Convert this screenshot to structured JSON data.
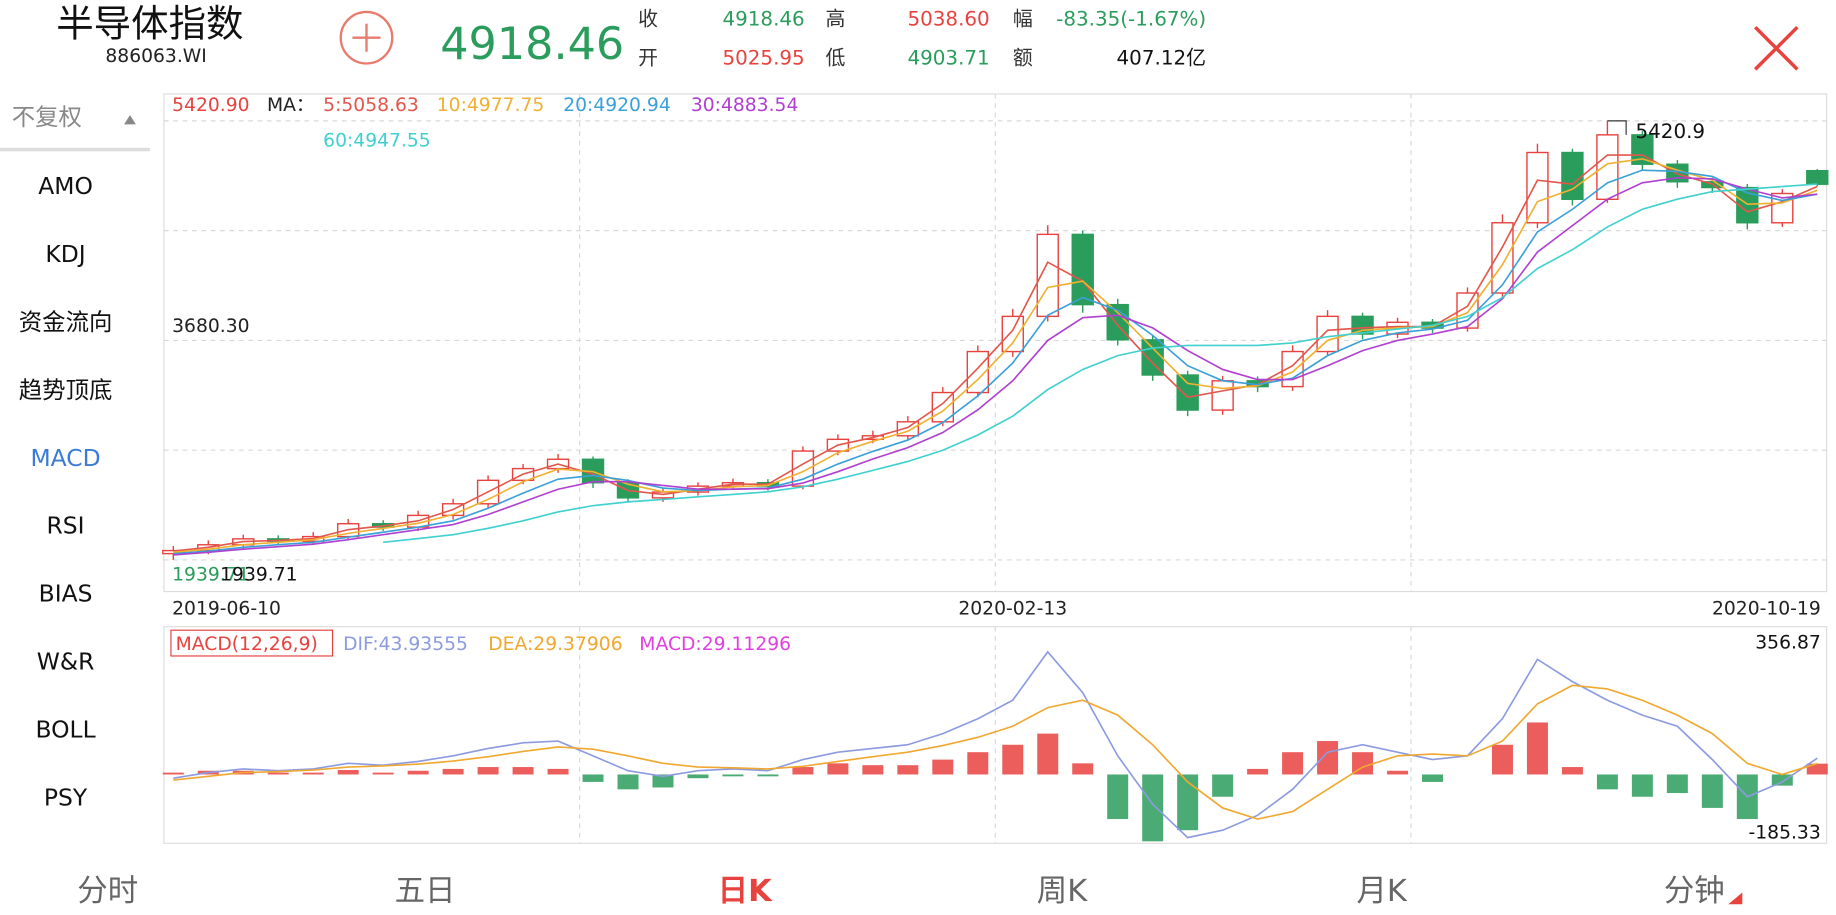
{
  "header": {
    "title": "半导体指数",
    "code": "886063.WI",
    "price": "4918.46",
    "quote": [
      [
        "收",
        "4918.46",
        "高",
        "5038.60",
        "幅",
        "-83.35(-1.67%)"
      ],
      [
        "开",
        "5025.95",
        "低",
        "4903.71",
        "额",
        "407.12亿"
      ]
    ]
  },
  "menu": {
    "adjust": "不复权",
    "items": [
      "AMO",
      "KDJ",
      "资金流向",
      "趋势顶底",
      "MACD",
      "RSI",
      "BIAS",
      "W&R",
      "BOLL",
      "PSY"
    ]
  },
  "tabs": [
    "分时",
    "五日",
    "日K",
    "周K",
    "月K",
    "分钟"
  ],
  "chart_data": [
    {
      "type": "candlestick",
      "categories": [
        "2019-06-10",
        null,
        null,
        null,
        null,
        null,
        null,
        null,
        null,
        null,
        null,
        null,
        null,
        null,
        null,
        null,
        null,
        null,
        null,
        null,
        null,
        null,
        null,
        null,
        "2020-02-13",
        null,
        null,
        null,
        null,
        null,
        null,
        null,
        null,
        null,
        null,
        null,
        null,
        null,
        null,
        null,
        null,
        null,
        null,
        null,
        null,
        null,
        null,
        "2020-10-19"
      ],
      "open": [
        1990,
        2014,
        2060,
        2107,
        2088,
        2125,
        2227,
        2200,
        2293,
        2385,
        2571,
        2664,
        2738,
        2552,
        2432,
        2478,
        2525,
        2552,
        2525,
        2803,
        2896,
        2924,
        3035,
        3267,
        3592,
        3871,
        4521,
        3964,
        3685,
        3406,
        3128,
        3360,
        3314,
        3592,
        3871,
        3731,
        3824,
        3778,
        4056,
        4613,
        5170,
        4799,
        5310,
        5077,
        4938,
        4892,
        4613,
        5025.95
      ],
      "high": [
        2050,
        2095,
        2140,
        2135,
        2160,
        2265,
        2255,
        2330,
        2425,
        2610,
        2700,
        2780,
        2760,
        2580,
        2510,
        2555,
        2585,
        2580,
        2840,
        2935,
        2965,
        3080,
        3310,
        3640,
        3930,
        4594,
        4550,
        4010,
        3720,
        3440,
        3400,
        3395,
        3640,
        3920,
        3900,
        3860,
        3850,
        4100,
        4680,
        5240,
        5200,
        5420.9,
        5340,
        5110,
        4970,
        4920,
        4880,
        5038.6
      ],
      "low": [
        1939.71,
        1985,
        2030,
        2055,
        2060,
        2095,
        2170,
        2170,
        2260,
        2350,
        2540,
        2630,
        2510,
        2395,
        2400,
        2450,
        2495,
        2490,
        2500,
        2770,
        2865,
        2890,
        3000,
        3230,
        3550,
        3830,
        3900,
        3640,
        3360,
        3080,
        3090,
        3270,
        3280,
        3560,
        3690,
        3700,
        3740,
        3750,
        4010,
        4570,
        4750,
        4770,
        5030,
        4890,
        4850,
        4560,
        4580,
        4903.71
      ],
      "close": [
        2014,
        2060,
        2107,
        2088,
        2125,
        2227,
        2200,
        2293,
        2385,
        2571,
        2664,
        2738,
        2552,
        2432,
        2478,
        2525,
        2552,
        2525,
        2803,
        2896,
        2924,
        3035,
        3267,
        3592,
        3871,
        4521,
        3964,
        3685,
        3406,
        3128,
        3360,
        3314,
        3592,
        3871,
        3731,
        3824,
        3778,
        4056,
        4613,
        5170,
        4799,
        5310,
        5077,
        4938,
        4892,
        4613,
        4845,
        4918.46
      ],
      "up_color": "#e8423f",
      "down_color": "#2a9d5c",
      "ma_label": "MA：",
      "series": [
        {
          "name": "5:5058.63",
          "color": "#e2574c",
          "values": [
            2010,
            2040,
            2085,
            2095,
            2110,
            2180,
            2210,
            2250,
            2340,
            2480,
            2620,
            2700,
            2620,
            2490,
            2460,
            2500,
            2540,
            2540,
            2700,
            2850,
            2910,
            2990,
            3180,
            3460,
            3760,
            4300,
            4150,
            3800,
            3500,
            3230,
            3280,
            3330,
            3480,
            3760,
            3780,
            3790,
            3790,
            3950,
            4420,
            4950,
            4920,
            5150,
            5150,
            5000,
            4920,
            4700,
            4780,
            4900
          ]
        },
        {
          "name": "10:4977.75",
          "color": "#f0b030",
          "values": [
            2000,
            2025,
            2060,
            2080,
            2100,
            2150,
            2190,
            2230,
            2300,
            2420,
            2560,
            2660,
            2640,
            2540,
            2480,
            2490,
            2520,
            2530,
            2640,
            2790,
            2880,
            2960,
            3120,
            3370,
            3660,
            4100,
            4150,
            3900,
            3620,
            3340,
            3300,
            3320,
            3430,
            3680,
            3760,
            3780,
            3790,
            3900,
            4280,
            4780,
            4880,
            5080,
            5120,
            5030,
            4950,
            4760,
            4770,
            4870
          ]
        },
        {
          "name": "20:4920.94",
          "color": "#3aa0d8",
          "values": [
            1990,
            2010,
            2040,
            2060,
            2080,
            2120,
            2160,
            2200,
            2250,
            2350,
            2470,
            2580,
            2610,
            2570,
            2510,
            2490,
            2500,
            2510,
            2580,
            2700,
            2800,
            2890,
            3030,
            3240,
            3500,
            3880,
            4020,
            3920,
            3720,
            3480,
            3360,
            3330,
            3380,
            3560,
            3680,
            3740,
            3770,
            3840,
            4120,
            4540,
            4720,
            4930,
            5030,
            5020,
            4980,
            4850,
            4790,
            4840
          ]
        },
        {
          "name": "30:4883.54",
          "color": "#b040d0",
          "values": [
            1980,
            2000,
            2025,
            2045,
            2065,
            2100,
            2140,
            2180,
            2220,
            2300,
            2400,
            2500,
            2560,
            2560,
            2530,
            2500,
            2500,
            2505,
            2550,
            2640,
            2740,
            2830,
            2950,
            3130,
            3360,
            3680,
            3860,
            3880,
            3780,
            3600,
            3450,
            3370,
            3370,
            3480,
            3600,
            3680,
            3730,
            3790,
            4010,
            4380,
            4590,
            4800,
            4930,
            4970,
            4960,
            4880,
            4810,
            4840
          ]
        },
        {
          "name": "60:4947.55",
          "color": "#40d0d0",
          "values": [
            null,
            null,
            null,
            null,
            null,
            null,
            2080,
            2110,
            2140,
            2190,
            2250,
            2320,
            2370,
            2400,
            2420,
            2440,
            2460,
            2480,
            2520,
            2580,
            2650,
            2720,
            2810,
            2930,
            3080,
            3290,
            3450,
            3560,
            3620,
            3640,
            3640,
            3640,
            3660,
            3710,
            3740,
            3770,
            3800,
            3870,
            4020,
            4250,
            4400,
            4580,
            4720,
            4800,
            4860,
            4880,
            4900,
            4920
          ]
        }
      ],
      "ylim": [
        1939.71,
        5420.9
      ],
      "yticks": [
        1939.71,
        {
          "value": 2810.01,
          "label": null
        },
        {
          "value": 3680.3,
          "label": "3680.30"
        },
        {
          "value": 4550.6,
          "label": null
        },
        {
          "value": 5420.9,
          "label": "5420.90"
        }
      ],
      "grid": true,
      "annotations": {
        "max_label": "5420.9",
        "min_label": "1939.71"
      }
    },
    {
      "type": "macd",
      "title": "MACD(12,26,9)",
      "series": [
        {
          "name": "DIF:43.93555",
          "color": "#8c9be0",
          "values": [
            -10,
            5,
            15,
            10,
            15,
            30,
            25,
            35,
            50,
            70,
            85,
            90,
            50,
            10,
            -5,
            10,
            15,
            10,
            40,
            60,
            70,
            80,
            110,
            150,
            200,
            330,
            220,
            50,
            -80,
            -170,
            -150,
            -110,
            -40,
            60,
            80,
            60,
            40,
            50,
            150,
            310,
            250,
            200,
            160,
            130,
            40,
            -60,
            -20,
            43.93555
          ]
        },
        {
          "name": "DEA:29.37906",
          "color": "#f0a830",
          "values": [
            -15,
            -5,
            5,
            8,
            12,
            20,
            23,
            28,
            36,
            48,
            62,
            74,
            68,
            50,
            30,
            20,
            18,
            15,
            22,
            35,
            48,
            60,
            78,
            100,
            130,
            180,
            200,
            160,
            80,
            -20,
            -90,
            -120,
            -100,
            -40,
            20,
            50,
            55,
            50,
            90,
            190,
            240,
            230,
            200,
            160,
            110,
            30,
            0,
            29.37906
          ]
        },
        {
          "name": "MACD:29.11296",
          "color": "#e040e0",
          "values": [
            5,
            10,
            10,
            5,
            5,
            12,
            5,
            10,
            15,
            20,
            20,
            15,
            -20,
            -40,
            -35,
            -10,
            -5,
            -5,
            20,
            30,
            25,
            25,
            40,
            60,
            80,
            110,
            30,
            -120,
            -180,
            -150,
            -60,
            15,
            60,
            90,
            60,
            10,
            -20,
            0,
            80,
            140,
            20,
            -40,
            -60,
            -50,
            -90,
            -120,
            -30,
            29.11296
          ]
        }
      ],
      "up_color": "#e8423f",
      "down_color": "#2a9d5c",
      "ylim": [
        -185.33,
        356.87
      ],
      "yticks": [
        -185.33,
        356.87
      ]
    }
  ]
}
